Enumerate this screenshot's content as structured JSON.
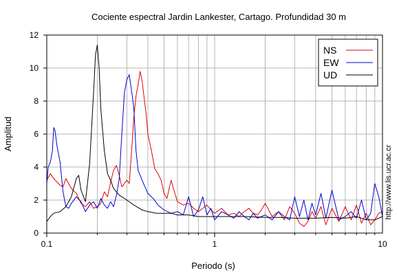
{
  "chart_data": {
    "type": "line",
    "title": "Cociente espectral Jardin Lankester, Cartago. Profundidad 30 m",
    "xlabel": "Periodo (s)",
    "ylabel": "Amplitud",
    "x_scale": "log",
    "xlim": [
      0.1,
      10
    ],
    "ylim": [
      0,
      12
    ],
    "x_ticks": [
      0.1,
      1,
      10
    ],
    "x_tick_labels": [
      "0.1",
      "1",
      "10"
    ],
    "y_ticks": [
      0,
      2,
      4,
      6,
      8,
      10,
      12
    ],
    "y_tick_labels": [
      "0",
      "2",
      "4",
      "6",
      "8",
      "10",
      "12"
    ],
    "grid": true,
    "legend_position": "top-right",
    "side_text": "http://www.lis.ucr.ac.cr",
    "series": [
      {
        "name": "NS",
        "color": "#e00000",
        "x": [
          0.1,
          0.105,
          0.11,
          0.115,
          0.12,
          0.125,
          0.13,
          0.14,
          0.15,
          0.16,
          0.17,
          0.18,
          0.19,
          0.2,
          0.21,
          0.22,
          0.23,
          0.24,
          0.25,
          0.26,
          0.27,
          0.28,
          0.29,
          0.3,
          0.31,
          0.32,
          0.33,
          0.34,
          0.35,
          0.36,
          0.37,
          0.38,
          0.39,
          0.4,
          0.42,
          0.44,
          0.46,
          0.48,
          0.5,
          0.52,
          0.55,
          0.6,
          0.65,
          0.7,
          0.75,
          0.8,
          0.85,
          0.9,
          0.95,
          1.0,
          1.1,
          1.2,
          1.3,
          1.4,
          1.5,
          1.6,
          1.7,
          1.8,
          1.9,
          2.0,
          2.2,
          2.4,
          2.6,
          2.8,
          3.0,
          3.2,
          3.4,
          3.6,
          3.8,
          4.0,
          4.3,
          4.6,
          5.0,
          5.5,
          6.0,
          6.5,
          7.0,
          7.5,
          8.0,
          8.5,
          9.0,
          9.5,
          10.0
        ],
        "y": [
          3.2,
          3.6,
          3.3,
          3.1,
          2.9,
          2.8,
          3.3,
          2.7,
          2.4,
          1.8,
          1.6,
          1.9,
          1.5,
          1.6,
          1.8,
          2.5,
          2.2,
          3.1,
          3.8,
          4.1,
          3.5,
          2.8,
          3.0,
          3.2,
          3.0,
          5.0,
          7.0,
          8.3,
          9.0,
          9.8,
          9.2,
          8.2,
          7.3,
          6.0,
          5.0,
          3.9,
          3.6,
          3.2,
          2.4,
          2.1,
          3.2,
          1.9,
          1.7,
          1.8,
          1.5,
          1.3,
          1.5,
          1.7,
          1.4,
          1.2,
          1.5,
          1.1,
          1.2,
          1.0,
          1.3,
          1.5,
          1.2,
          1.1,
          1.4,
          1.8,
          1.0,
          1.3,
          0.8,
          1.6,
          1.2,
          0.6,
          0.4,
          0.7,
          1.3,
          0.9,
          1.6,
          0.5,
          1.5,
          0.7,
          1.6,
          0.8,
          1.7,
          0.6,
          1.2,
          0.5,
          0.8,
          1.2,
          1.3
        ]
      },
      {
        "name": "EW",
        "color": "#0000d0",
        "x": [
          0.1,
          0.102,
          0.105,
          0.108,
          0.11,
          0.112,
          0.115,
          0.12,
          0.125,
          0.13,
          0.135,
          0.14,
          0.15,
          0.16,
          0.17,
          0.18,
          0.19,
          0.2,
          0.21,
          0.22,
          0.23,
          0.24,
          0.25,
          0.26,
          0.27,
          0.28,
          0.29,
          0.3,
          0.31,
          0.32,
          0.33,
          0.34,
          0.35,
          0.37,
          0.4,
          0.43,
          0.46,
          0.5,
          0.55,
          0.6,
          0.65,
          0.7,
          0.75,
          0.8,
          0.85,
          0.9,
          0.95,
          1.0,
          1.1,
          1.2,
          1.3,
          1.4,
          1.5,
          1.6,
          1.7,
          1.8,
          2.0,
          2.2,
          2.4,
          2.6,
          2.8,
          3.0,
          3.2,
          3.4,
          3.6,
          3.8,
          4.0,
          4.3,
          4.6,
          5.0,
          5.5,
          6.0,
          6.5,
          7.0,
          7.5,
          8.0,
          8.5,
          9.0,
          9.5,
          10.0
        ],
        "y": [
          3.0,
          4.0,
          4.3,
          5.0,
          6.4,
          6.2,
          5.3,
          4.3,
          2.5,
          1.6,
          1.5,
          1.8,
          2.2,
          1.9,
          1.3,
          1.7,
          1.9,
          1.5,
          2.1,
          1.7,
          1.5,
          1.9,
          1.6,
          2.3,
          3.3,
          6.0,
          8.5,
          9.3,
          9.6,
          8.6,
          7.6,
          5.0,
          3.8,
          3.2,
          2.4,
          2.1,
          1.7,
          1.4,
          1.2,
          1.3,
          1.1,
          2.2,
          1.0,
          1.4,
          2.2,
          1.1,
          1.5,
          0.8,
          1.3,
          1.1,
          0.9,
          1.3,
          1.0,
          0.8,
          1.2,
          0.9,
          1.1,
          0.8,
          1.3,
          1.0,
          0.8,
          2.2,
          1.0,
          2.0,
          0.8,
          1.8,
          1.1,
          2.4,
          0.9,
          2.6,
          0.8,
          1.0,
          1.3,
          0.9,
          2.0,
          0.8,
          1.2,
          3.0,
          2.2,
          1.0
        ]
      },
      {
        "name": "UD",
        "color": "#000000",
        "x": [
          0.1,
          0.105,
          0.11,
          0.12,
          0.13,
          0.14,
          0.15,
          0.155,
          0.16,
          0.17,
          0.18,
          0.19,
          0.195,
          0.2,
          0.205,
          0.21,
          0.22,
          0.23,
          0.24,
          0.25,
          0.27,
          0.3,
          0.33,
          0.37,
          0.4,
          0.45,
          0.5,
          0.55,
          0.6,
          0.7,
          0.8,
          1.0,
          1.2,
          1.5,
          2.0,
          2.5,
          3.0,
          4.0,
          5.0,
          6.0,
          7.0,
          8.0,
          9.0,
          10.0
        ],
        "y": [
          0.7,
          1.0,
          1.2,
          1.3,
          1.6,
          2.2,
          3.3,
          3.5,
          2.6,
          1.9,
          4.2,
          8.5,
          10.8,
          11.4,
          10.0,
          7.5,
          5.0,
          3.6,
          3.2,
          2.7,
          2.3,
          2.0,
          1.7,
          1.4,
          1.3,
          1.2,
          1.2,
          1.2,
          1.1,
          1.1,
          1.0,
          1.0,
          1.0,
          1.0,
          0.95,
          0.95,
          0.9,
          0.9,
          0.95,
          0.9,
          1.0,
          0.8,
          0.8,
          1.0
        ]
      }
    ]
  }
}
